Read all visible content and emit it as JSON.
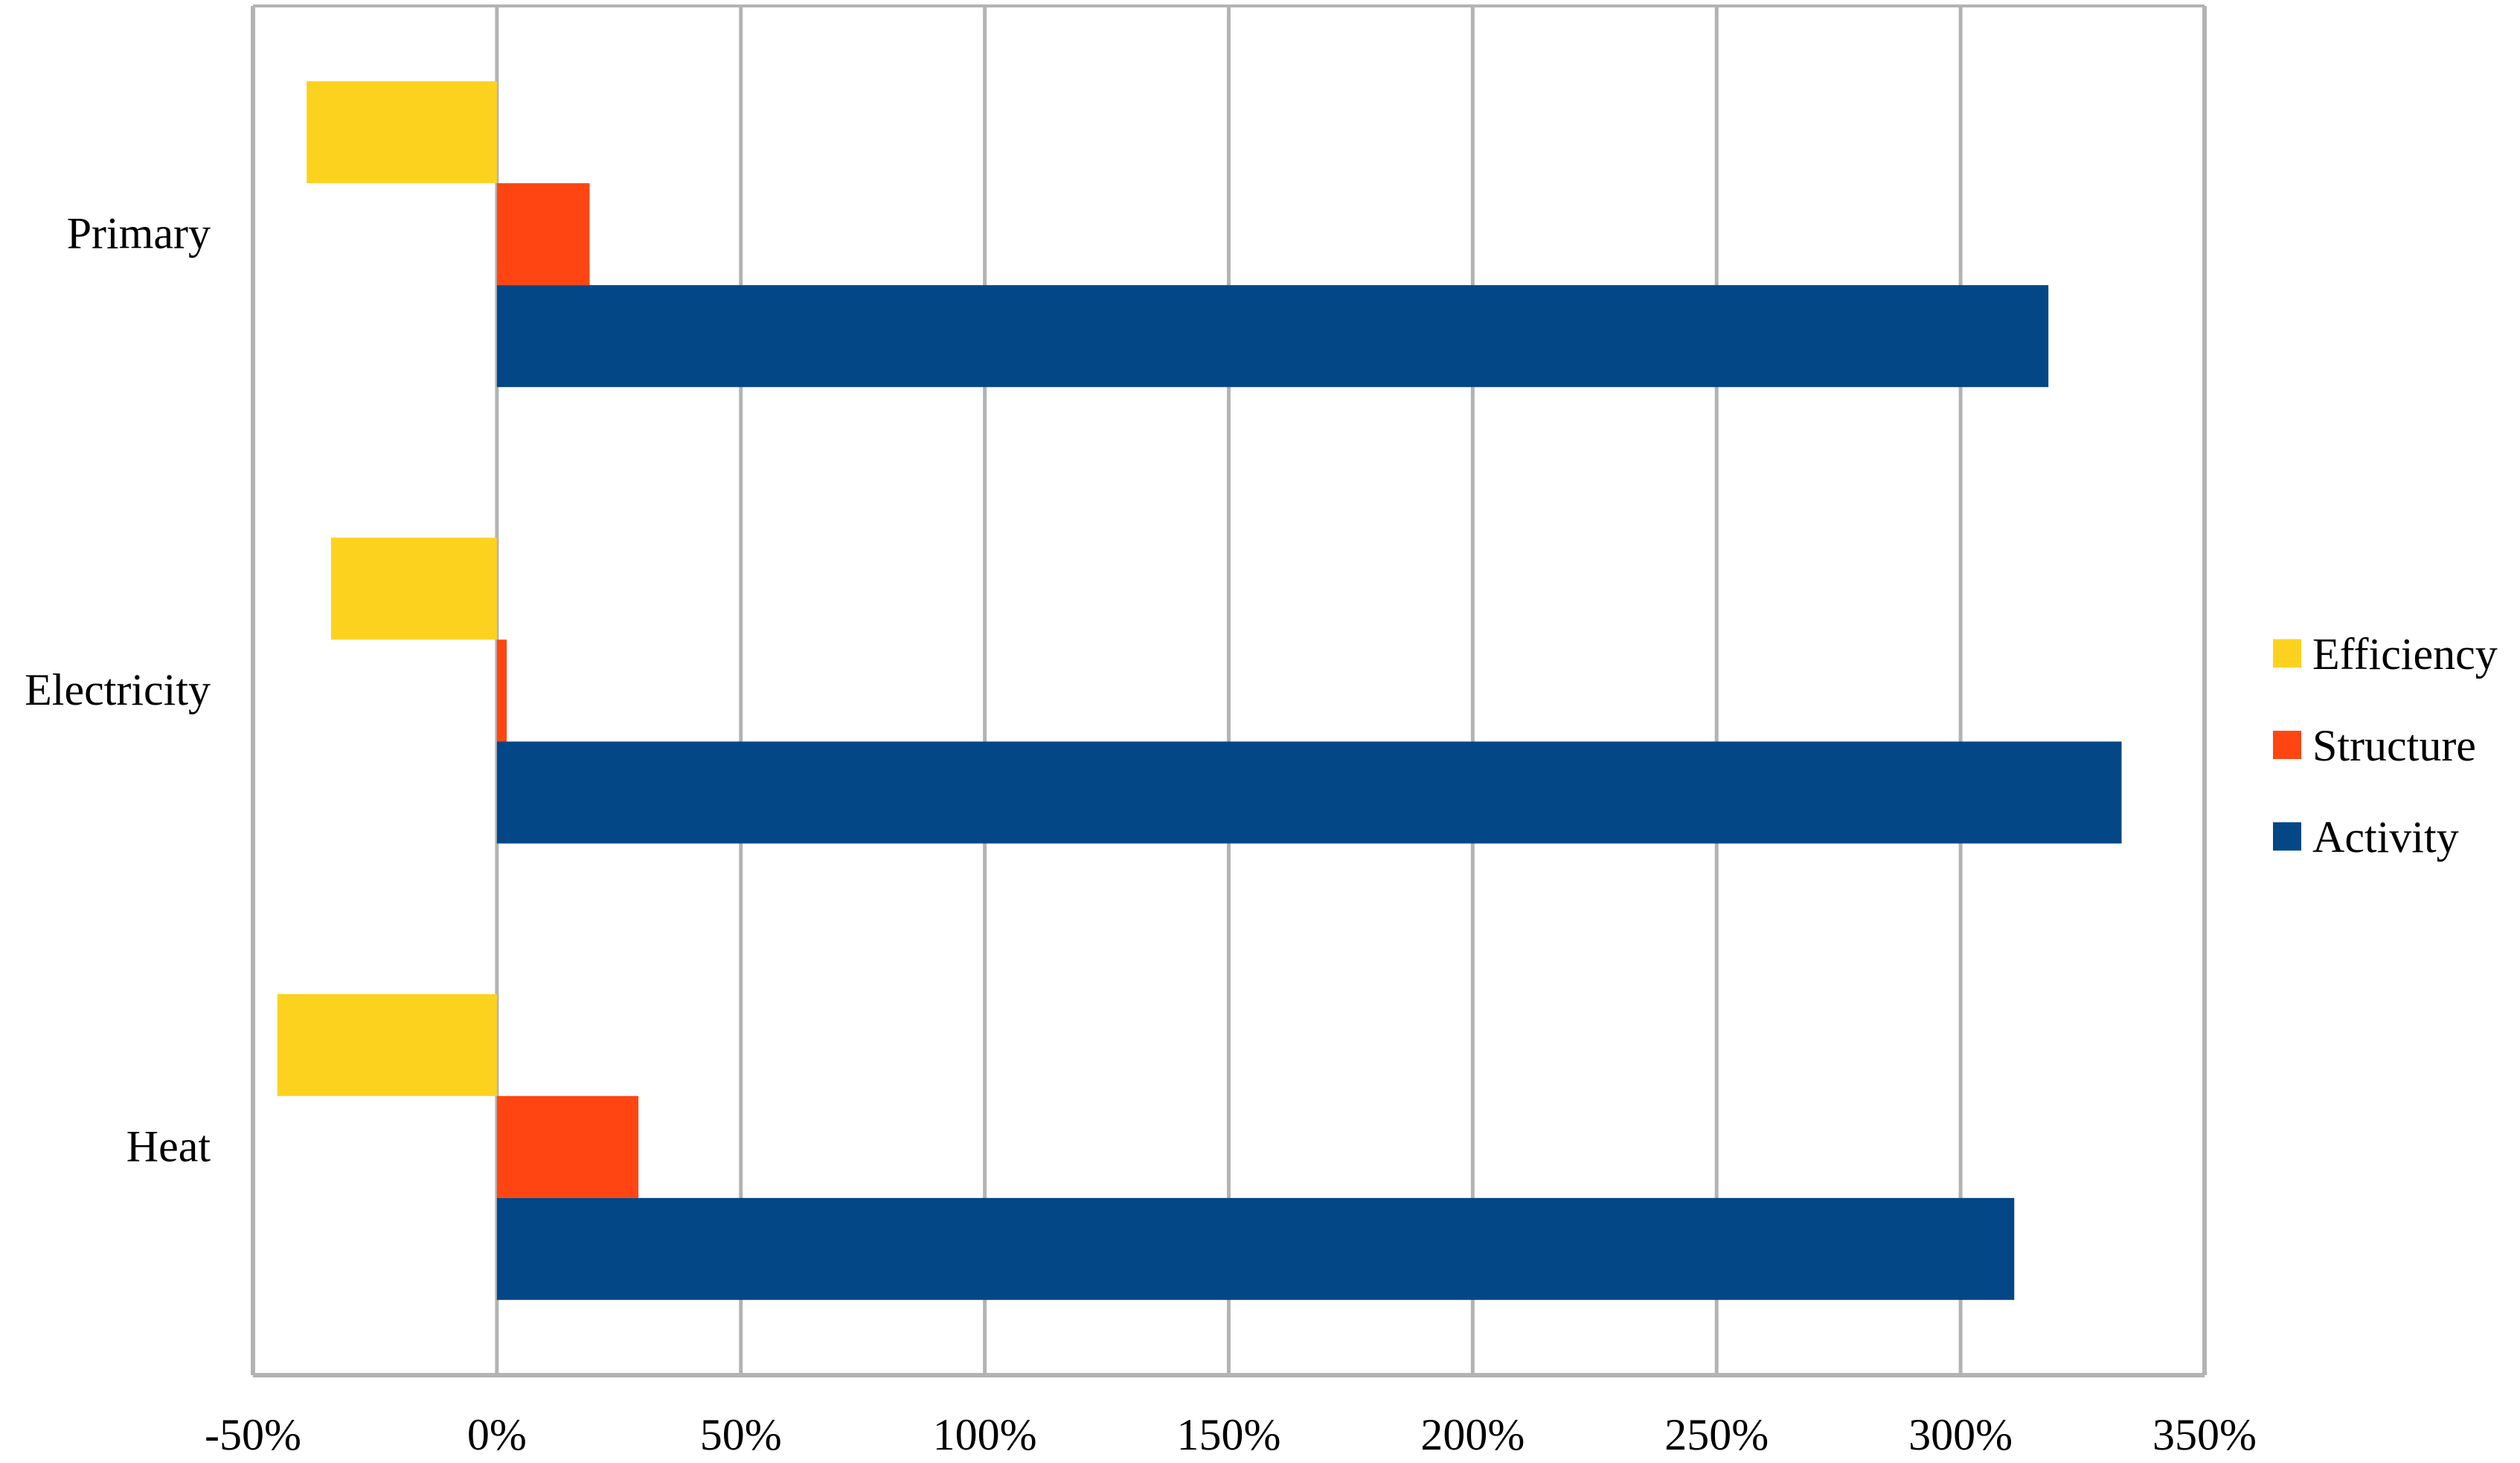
{
  "chart_data": {
    "type": "bar",
    "orientation": "horizontal",
    "categories": [
      "Primary",
      "Electricity",
      "Heat"
    ],
    "series": [
      {
        "name": "Efficiency",
        "color": "#FDD21F",
        "values": [
          -39,
          -34,
          -45
        ]
      },
      {
        "name": "Structure",
        "color": "#FF4612",
        "values": [
          19,
          2,
          29
        ]
      },
      {
        "name": "Activity",
        "color": "#034787",
        "values": [
          318,
          333,
          311
        ]
      }
    ],
    "xlim": [
      -50,
      350
    ],
    "x_ticks": [
      -50,
      0,
      50,
      100,
      150,
      200,
      250,
      300,
      350
    ],
    "x_tick_labels": [
      "-50%",
      "0%",
      "50%",
      "100%",
      "150%",
      "200%",
      "250%",
      "300%",
      "350%"
    ],
    "grid": true,
    "legend_position": "right",
    "legend_order": [
      "Efficiency",
      "Structure",
      "Activity"
    ],
    "title": "",
    "xlabel": "",
    "ylabel": ""
  },
  "colors": {
    "grid": "#B3B3B3",
    "frame": "#B3B3B3"
  }
}
